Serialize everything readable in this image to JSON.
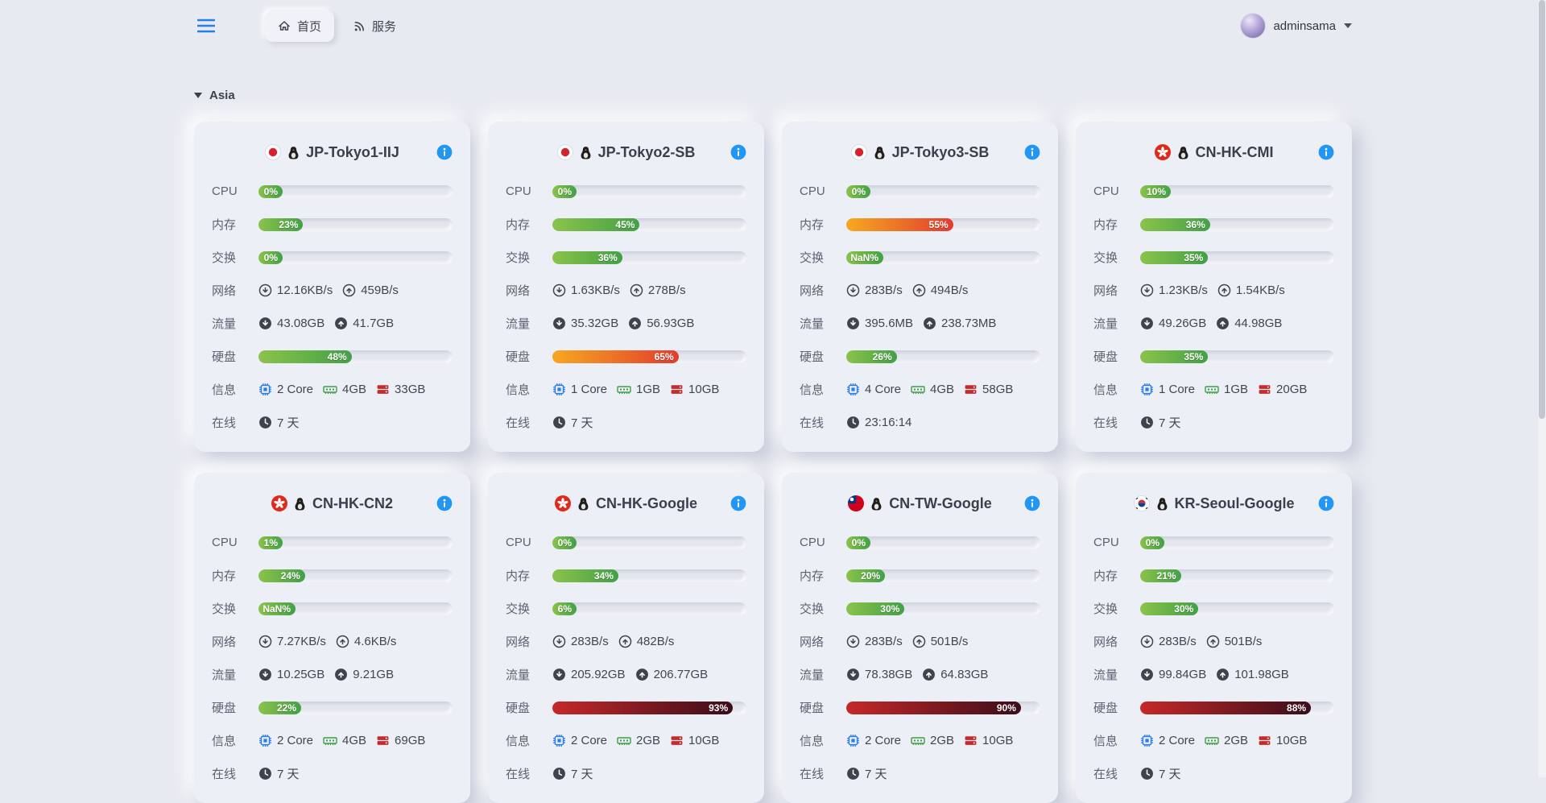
{
  "navbar": {
    "menu_icon": "hamburger-icon",
    "tabs": [
      {
        "label": "首页",
        "icon": "home-icon",
        "active": true
      },
      {
        "label": "服务",
        "icon": "rss-icon",
        "active": false
      }
    ],
    "user": {
      "name": "adminsama",
      "caret_icon": "chevron-down-icon"
    }
  },
  "section": {
    "title": "Asia"
  },
  "labels": {
    "cpu": "CPU",
    "memory": "内存",
    "swap": "交换",
    "network": "网络",
    "traffic": "流量",
    "disk": "硬盘",
    "info": "信息",
    "online": "在线"
  },
  "colors": {
    "accent_blue": "#2b7de9",
    "bar_green_start": "#8bc34a",
    "bar_green_end": "#43a047",
    "bar_orange_start": "#f6a821",
    "bar_orange_end": "#e23b2e",
    "bar_red_start": "#c62828",
    "bar_red_end": "#3a0d1a"
  },
  "servers": [
    {
      "name": "JP-Tokyo1-IIJ",
      "flag": "jp",
      "cpu": {
        "pct": 0,
        "label": "0%"
      },
      "mem": {
        "pct": 23,
        "label": "23%"
      },
      "swap": {
        "pct": 0,
        "label": "0%"
      },
      "net_down": "12.16KB/s",
      "net_up": "459B/s",
      "traffic_down": "43.08GB",
      "traffic_up": "41.7GB",
      "disk": {
        "pct": 48,
        "label": "48%"
      },
      "cores": "2 Core",
      "ram": "4GB",
      "storage": "33GB",
      "uptime": "7 天"
    },
    {
      "name": "JP-Tokyo2-SB",
      "flag": "jp",
      "cpu": {
        "pct": 0,
        "label": "0%"
      },
      "mem": {
        "pct": 45,
        "label": "45%"
      },
      "swap": {
        "pct": 36,
        "label": "36%"
      },
      "net_down": "1.63KB/s",
      "net_up": "278B/s",
      "traffic_down": "35.32GB",
      "traffic_up": "56.93GB",
      "disk": {
        "pct": 65,
        "label": "65%"
      },
      "cores": "1 Core",
      "ram": "1GB",
      "storage": "10GB",
      "uptime": "7 天"
    },
    {
      "name": "JP-Tokyo3-SB",
      "flag": "jp",
      "cpu": {
        "pct": 0,
        "label": "0%"
      },
      "mem": {
        "pct": 55,
        "label": "55%"
      },
      "swap": {
        "pct": null,
        "label": "NaN%"
      },
      "net_down": "283B/s",
      "net_up": "494B/s",
      "traffic_down": "395.6MB",
      "traffic_up": "238.73MB",
      "disk": {
        "pct": 26,
        "label": "26%"
      },
      "cores": "4 Core",
      "ram": "4GB",
      "storage": "58GB",
      "uptime": "23:16:14"
    },
    {
      "name": "CN-HK-CMI",
      "flag": "hk",
      "cpu": {
        "pct": 10,
        "label": "10%"
      },
      "mem": {
        "pct": 36,
        "label": "36%"
      },
      "swap": {
        "pct": 35,
        "label": "35%"
      },
      "net_down": "1.23KB/s",
      "net_up": "1.54KB/s",
      "traffic_down": "49.26GB",
      "traffic_up": "44.98GB",
      "disk": {
        "pct": 35,
        "label": "35%"
      },
      "cores": "1 Core",
      "ram": "1GB",
      "storage": "20GB",
      "uptime": "7 天"
    },
    {
      "name": "CN-HK-CN2",
      "flag": "hk",
      "cpu": {
        "pct": 1,
        "label": "1%"
      },
      "mem": {
        "pct": 24,
        "label": "24%"
      },
      "swap": {
        "pct": null,
        "label": "NaN%"
      },
      "net_down": "7.27KB/s",
      "net_up": "4.6KB/s",
      "traffic_down": "10.25GB",
      "traffic_up": "9.21GB",
      "disk": {
        "pct": 22,
        "label": "22%"
      },
      "cores": "2 Core",
      "ram": "4GB",
      "storage": "69GB",
      "uptime": "7 天"
    },
    {
      "name": "CN-HK-Google",
      "flag": "hk",
      "cpu": {
        "pct": 0,
        "label": "0%"
      },
      "mem": {
        "pct": 34,
        "label": "34%"
      },
      "swap": {
        "pct": 6,
        "label": "6%"
      },
      "net_down": "283B/s",
      "net_up": "482B/s",
      "traffic_down": "205.92GB",
      "traffic_up": "206.77GB",
      "disk": {
        "pct": 93,
        "label": "93%"
      },
      "cores": "2 Core",
      "ram": "2GB",
      "storage": "10GB",
      "uptime": "7 天"
    },
    {
      "name": "CN-TW-Google",
      "flag": "tw",
      "cpu": {
        "pct": 0,
        "label": "0%"
      },
      "mem": {
        "pct": 20,
        "label": "20%"
      },
      "swap": {
        "pct": 30,
        "label": "30%"
      },
      "net_down": "283B/s",
      "net_up": "501B/s",
      "traffic_down": "78.38GB",
      "traffic_up": "64.83GB",
      "disk": {
        "pct": 90,
        "label": "90%"
      },
      "cores": "2 Core",
      "ram": "2GB",
      "storage": "10GB",
      "uptime": "7 天"
    },
    {
      "name": "KR-Seoul-Google",
      "flag": "kr",
      "cpu": {
        "pct": 0,
        "label": "0%"
      },
      "mem": {
        "pct": 21,
        "label": "21%"
      },
      "swap": {
        "pct": 30,
        "label": "30%"
      },
      "net_down": "283B/s",
      "net_up": "501B/s",
      "traffic_down": "99.84GB",
      "traffic_up": "101.98GB",
      "disk": {
        "pct": 88,
        "label": "88%"
      },
      "cores": "2 Core",
      "ram": "2GB",
      "storage": "10GB",
      "uptime": "7 天"
    }
  ]
}
